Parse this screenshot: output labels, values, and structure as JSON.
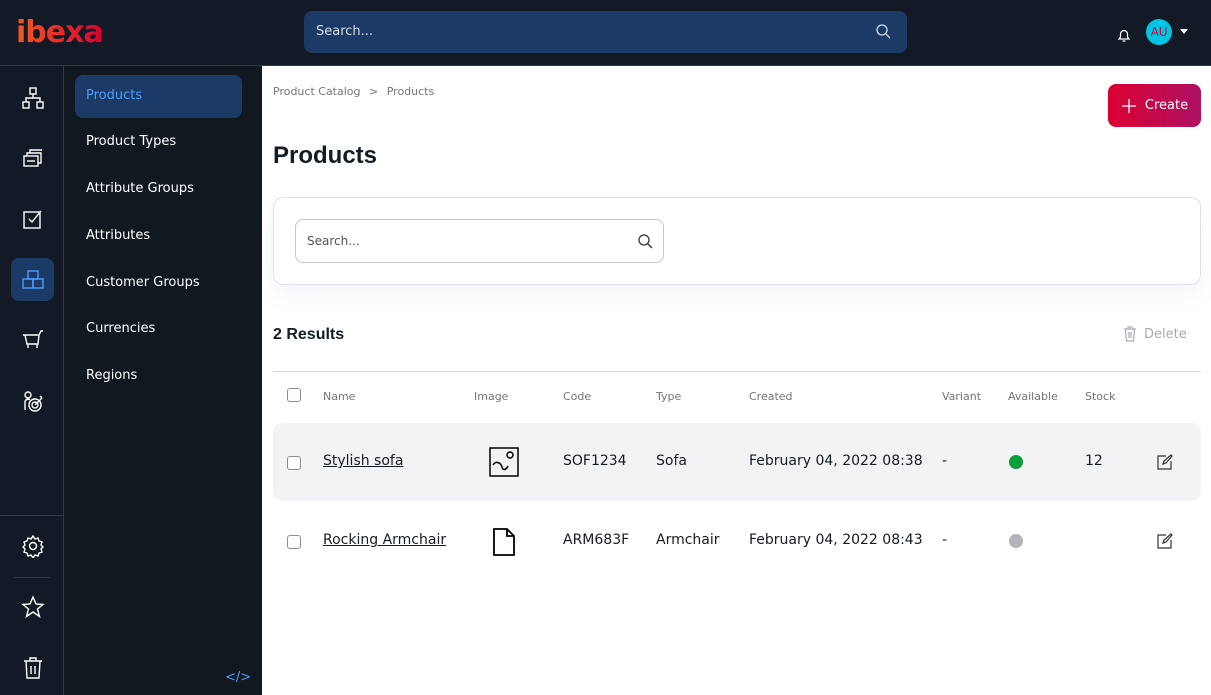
{
  "header": {
    "logo": "ibexa",
    "search_placeholder": "Search...",
    "avatar": "AU"
  },
  "sidebar": {
    "items": [
      {
        "label": "Products",
        "active": true
      },
      {
        "label": "Product Types"
      },
      {
        "label": "Attribute Groups"
      },
      {
        "label": "Attributes"
      },
      {
        "label": "Customer Groups"
      },
      {
        "label": "Currencies"
      },
      {
        "label": "Regions"
      }
    ]
  },
  "main": {
    "breadcrumb": [
      "Product Catalog",
      "Products"
    ],
    "breadcrumb_sep": ">",
    "create_label": "Create",
    "title": "Products",
    "search_placeholder": "Search...",
    "results": "2 Results",
    "delete_label": "Delete",
    "columns": [
      "Name",
      "Image",
      "Code",
      "Type",
      "Created",
      "Variant",
      "Available",
      "Stock"
    ],
    "rows": [
      {
        "name": "Stylish sofa",
        "image": "image-icon",
        "code": "SOF1234",
        "type": "Sofa",
        "created": "February 04, 2022 08:38",
        "variant": "-",
        "available": true,
        "stock": "12"
      },
      {
        "name": "Rocking Armchair",
        "image": "file-icon",
        "code": "ARM683F",
        "type": "Armchair",
        "created": "February 04, 2022 08:43",
        "variant": "-",
        "available": false,
        "stock": ""
      }
    ]
  },
  "colors": {
    "accent": "#db0032",
    "nav_active": "#1b3a66",
    "available": "#0aa13a",
    "unavailable": "#b4b5bb"
  }
}
